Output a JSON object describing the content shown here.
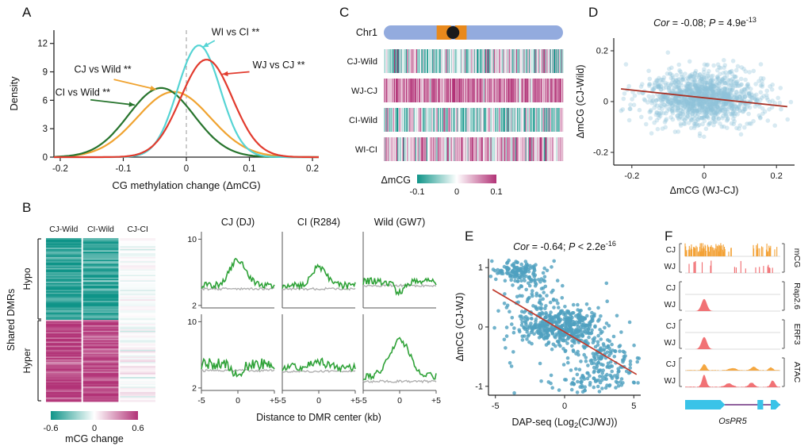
{
  "meta": {
    "background": "#ffffff",
    "colormap_neg": "#0F9488",
    "colormap_mid": "#FFFFFF",
    "colormap_pos": "#B23377"
  },
  "chart_data": [
    {
      "panel": "A",
      "type": "density",
      "xlabel": "CG methylation change (ΔmCG)",
      "ylabel": "Density",
      "xlim": [
        -0.21,
        0.21
      ],
      "ylim": [
        0,
        13.4
      ],
      "x_ticks": [
        -0.2,
        -0.1,
        0,
        0.1,
        0.2
      ],
      "x_tick_labels": [
        "-0.2",
        "-0.1",
        "0",
        "0.1",
        "0.2"
      ],
      "y_ticks": [
        0,
        3,
        6,
        9,
        12
      ],
      "zero_guide": 0,
      "series": [
        {
          "name": "CJ vs Wild **",
          "color": "#F0A330",
          "mean": -0.02,
          "sd": 0.058,
          "peak": 6.9
        },
        {
          "name": "CI vs Wild **",
          "color": "#27742D",
          "mean": -0.04,
          "sd": 0.052,
          "peak": 7.3
        },
        {
          "name": "WI vs CI **",
          "color": "#55D4D4",
          "mean": 0.02,
          "sd": 0.034,
          "peak": 11.8
        },
        {
          "name": "WJ vs CJ **",
          "color": "#E23B2E",
          "mean": 0.032,
          "sd": 0.041,
          "peak": 10.3
        }
      ],
      "annotations": [
        {
          "text": "WI vs CI **",
          "color": "#55D4D4",
          "tx": 0.04,
          "ty": 12.85,
          "ax1": 0.045,
          "ay1": 12.3,
          "ax2": 0.026,
          "ay2": 11.6
        },
        {
          "text": "WJ vs CJ **",
          "color": "#E23B2E",
          "tx": 0.105,
          "ty": 9.4,
          "ax1": 0.1,
          "ay1": 9.0,
          "ax2": 0.057,
          "ay2": 8.75
        },
        {
          "text": "CJ vs Wild **",
          "color": "#F0A330",
          "tx": -0.178,
          "ty": 8.9,
          "ax1": -0.115,
          "ay1": 8.2,
          "ax2": -0.048,
          "ay2": 7.15
        },
        {
          "text": "CI vs Wild **",
          "color": "#27742D",
          "tx": -0.208,
          "ty": 6.5,
          "ax1": -0.152,
          "ay1": 6.05,
          "ax2": -0.082,
          "ay2": 5.5
        }
      ]
    },
    {
      "panel": "B",
      "type": "heatmap+profiles",
      "heatmap": {
        "col_labels": [
          "CJ-Wild",
          "CI-Wild",
          "CJ-CI"
        ],
        "side_label": "Shared DMRs",
        "row_groups": [
          {
            "name": "Hypo",
            "n_rows": 60,
            "col_means": [
              -0.52,
              -0.5,
              -0.01
            ],
            "col_sds": [
              0.1,
              0.11,
              0.04
            ]
          },
          {
            "name": "Hyper",
            "n_rows": 60,
            "col_means": [
              0.54,
              0.5,
              0.02
            ],
            "col_sds": [
              0.1,
              0.11,
              0.07
            ]
          }
        ],
        "colorbar": {
          "min": -0.6,
          "max": 0.6,
          "tick_labels": [
            "-0.6",
            "0",
            "0.6"
          ],
          "label": "mCG change"
        }
      },
      "profiles": {
        "col_titles": [
          "CJ (DJ)",
          "CI (R284)",
          "Wild (GW7)"
        ],
        "row_names": [
          "Hypo",
          "Hyper"
        ],
        "ylim": [
          2,
          10
        ],
        "y_ticks": [
          2,
          10
        ],
        "x_tick_labels": [
          "-5",
          "0",
          "+5"
        ],
        "xlabel": "Distance to DMR center (kb)",
        "treatment_color": "#2FA238",
        "control_color": "#B0B0B0",
        "cells": [
          [
            {
              "base": 4.4,
              "amp": 3.1,
              "width": 1.1,
              "noise": 0.5,
              "ctrl": 4.0
            },
            {
              "base": 4.4,
              "amp": 2.2,
              "width": 1.0,
              "noise": 0.5,
              "ctrl": 4.0
            },
            {
              "base": 4.9,
              "amp": -1.4,
              "width": 0.7,
              "noise": 0.55,
              "ctrl": 4.4
            }
          ],
          [
            {
              "base": 4.9,
              "amp": -1.7,
              "width": 0.6,
              "noise": 0.85,
              "ctrl": 4.1
            },
            {
              "base": 4.5,
              "amp": 0.7,
              "width": 0.9,
              "noise": 0.6,
              "ctrl": 4.0
            },
            {
              "base": 3.4,
              "amp": 4.4,
              "width": 1.4,
              "noise": 0.5,
              "ctrl": 2.8
            }
          ]
        ]
      }
    },
    {
      "panel": "C",
      "type": "chromosome-heatmap-tracks",
      "chromosome": {
        "label": "Chr1",
        "body_color": "#93ABDE",
        "band_color": "#E8891C",
        "bands": [
          {
            "start": 0.295,
            "end": 0.375
          },
          {
            "start": 0.398,
            "end": 0.462
          }
        ],
        "centromere": {
          "pos": 0.386,
          "color": "#1A1A1A"
        }
      },
      "tracks": [
        {
          "label": "CJ-Wild",
          "mean": -0.02,
          "sd": 0.055
        },
        {
          "label": "WJ-CJ",
          "mean": 0.06,
          "sd": 0.035
        },
        {
          "label": "CI-Wild",
          "mean": -0.025,
          "sd": 0.055
        },
        {
          "label": "WI-CI",
          "mean": 0.03,
          "sd": 0.05
        }
      ],
      "n_bins": 210,
      "colorbar": {
        "min": -0.1,
        "max": 0.1,
        "tick_labels": [
          "-0.1",
          "0",
          "0.1"
        ],
        "label": "ΔmCG"
      }
    },
    {
      "panel": "D",
      "type": "scatter",
      "stats": {
        "cor_label": "Cor",
        "cor_value": " = -0.08; ",
        "p_label": "P",
        "p_value": " = 4.9e",
        "p_exponent": "-13"
      },
      "xlabel": "ΔmCG (WJ-CJ)",
      "ylabel": "ΔmCG (CJ-Wild)",
      "xlim": [
        -0.25,
        0.25
      ],
      "ylim": [
        -0.25,
        0.25
      ],
      "x_ticks": [
        -0.2,
        0,
        0.2
      ],
      "x_tick_labels": [
        "-0.2",
        "0",
        "0.2"
      ],
      "y_ticks": [
        -0.2,
        0,
        0.2
      ],
      "y_tick_labels": [
        "-0.2",
        "0",
        "0.2"
      ],
      "point_style": {
        "color": "#8FC4DB",
        "opacity": 0.35,
        "radius": 2.8
      },
      "cloud": {
        "n": 1300,
        "cx": 0,
        "cy": 0.015,
        "sx": 0.08,
        "sy": 0.05
      },
      "regression": {
        "x1": -0.23,
        "y1": 0.05,
        "x2": 0.23,
        "y2": -0.02,
        "color": "#A93226"
      }
    },
    {
      "panel": "E",
      "type": "scatter",
      "stats": {
        "cor_label": "Cor",
        "cor_value": " = -0.64; ",
        "p_label": "P",
        "p_value": " < 2.2e",
        "p_exponent": "-16"
      },
      "xlabel_parts": {
        "pre": "DAP-seq (Log",
        "sub": "2",
        "post": "(CJ/WJ))"
      },
      "ylabel": "ΔmCG (CJ-WJ)",
      "xlim": [
        -5.5,
        5.5
      ],
      "ylim": [
        -1.15,
        1.15
      ],
      "x_ticks": [
        -5,
        0,
        5
      ],
      "x_tick_labels": [
        "-5",
        "0",
        "5"
      ],
      "y_ticks": [
        -1,
        0,
        1
      ],
      "y_tick_labels": [
        "-1",
        "0",
        "1"
      ],
      "point_style": {
        "color": "#4FA0BF",
        "opacity": 0.8,
        "radius": 2.3
      },
      "clusters": [
        {
          "n": 120,
          "cx": -3.4,
          "cy": 0.93,
          "sx": 0.9,
          "sy": 0.09
        },
        {
          "n": 80,
          "cx": -2.2,
          "cy": 0.55,
          "sx": 0.9,
          "sy": 0.25
        },
        {
          "n": 430,
          "cx": -0.2,
          "cy": 0.02,
          "sx": 1.5,
          "sy": 0.16
        },
        {
          "n": 150,
          "cx": 2.7,
          "cy": -0.55,
          "sx": 1.2,
          "sy": 0.22
        },
        {
          "n": 60,
          "cx": 1.6,
          "cy": -0.95,
          "sx": 1.8,
          "sy": 0.07
        },
        {
          "n": 45,
          "cx": 0.5,
          "cy": -0.1,
          "sx": 2.8,
          "sy": 0.45
        }
      ],
      "regression": {
        "x1": -5.2,
        "y1": 0.63,
        "x2": 5.2,
        "y2": -0.8,
        "color": "#C0392B"
      }
    },
    {
      "panel": "F",
      "type": "genome-tracks",
      "row_labels": [
        "CJ",
        "WJ"
      ],
      "groups": [
        {
          "name": "mCG",
          "cj": {
            "style": "bars",
            "color": "#F3A237",
            "regions": [
              [
                0.0,
                0.42,
                0.75
              ],
              [
                0.42,
                0.7,
                0.08
              ],
              [
                0.7,
                0.97,
                0.4
              ]
            ]
          },
          "wj": {
            "style": "bars",
            "color": "#F06A6E",
            "regions": [
              [
                0.02,
                0.3,
                0.14
              ],
              [
                0.3,
                0.72,
                0.06
              ],
              [
                0.72,
                0.96,
                0.16
              ]
            ]
          }
        },
        {
          "name": "Rap2.6",
          "cj": {
            "style": "flat",
            "color": "#F3A237"
          },
          "wj": {
            "style": "peaks",
            "color": "#F06A6E",
            "peaks": [
              [
                0.2,
                0.95,
                0.04
              ]
            ]
          }
        },
        {
          "name": "ERF3",
          "cj": {
            "style": "flat",
            "color": "#F3A237"
          },
          "wj": {
            "style": "peaks",
            "color": "#F06A6E",
            "peaks": [
              [
                0.2,
                0.95,
                0.04
              ]
            ]
          }
        },
        {
          "name": "ATAC",
          "cj": {
            "style": "peaks",
            "color": "#F3A237",
            "peaks": [
              [
                0.2,
                0.5,
                0.03
              ],
              [
                0.5,
                0.18,
                0.05
              ],
              [
                0.72,
                0.28,
                0.04
              ],
              [
                0.9,
                0.22,
                0.03
              ]
            ],
            "noise": 0.05
          },
          "wj": {
            "style": "peaks",
            "color": "#F06A6E",
            "peaks": [
              [
                0.2,
                0.95,
                0.03
              ],
              [
                0.46,
                0.28,
                0.05
              ],
              [
                0.7,
                0.33,
                0.04
              ],
              [
                0.92,
                0.5,
                0.03
              ]
            ],
            "noise": 0.06
          }
        }
      ],
      "gene": {
        "name": "OsPR5",
        "exon_color": "#3AC3E8",
        "intron_color": "#6C2F7E",
        "exons": [
          {
            "start": 0.0,
            "end": 0.42,
            "arrow": true
          },
          {
            "start": 0.76,
            "end": 0.82,
            "arrow": false
          },
          {
            "start": 0.9,
            "end": 1.0,
            "arrow": true
          }
        ]
      }
    }
  ]
}
